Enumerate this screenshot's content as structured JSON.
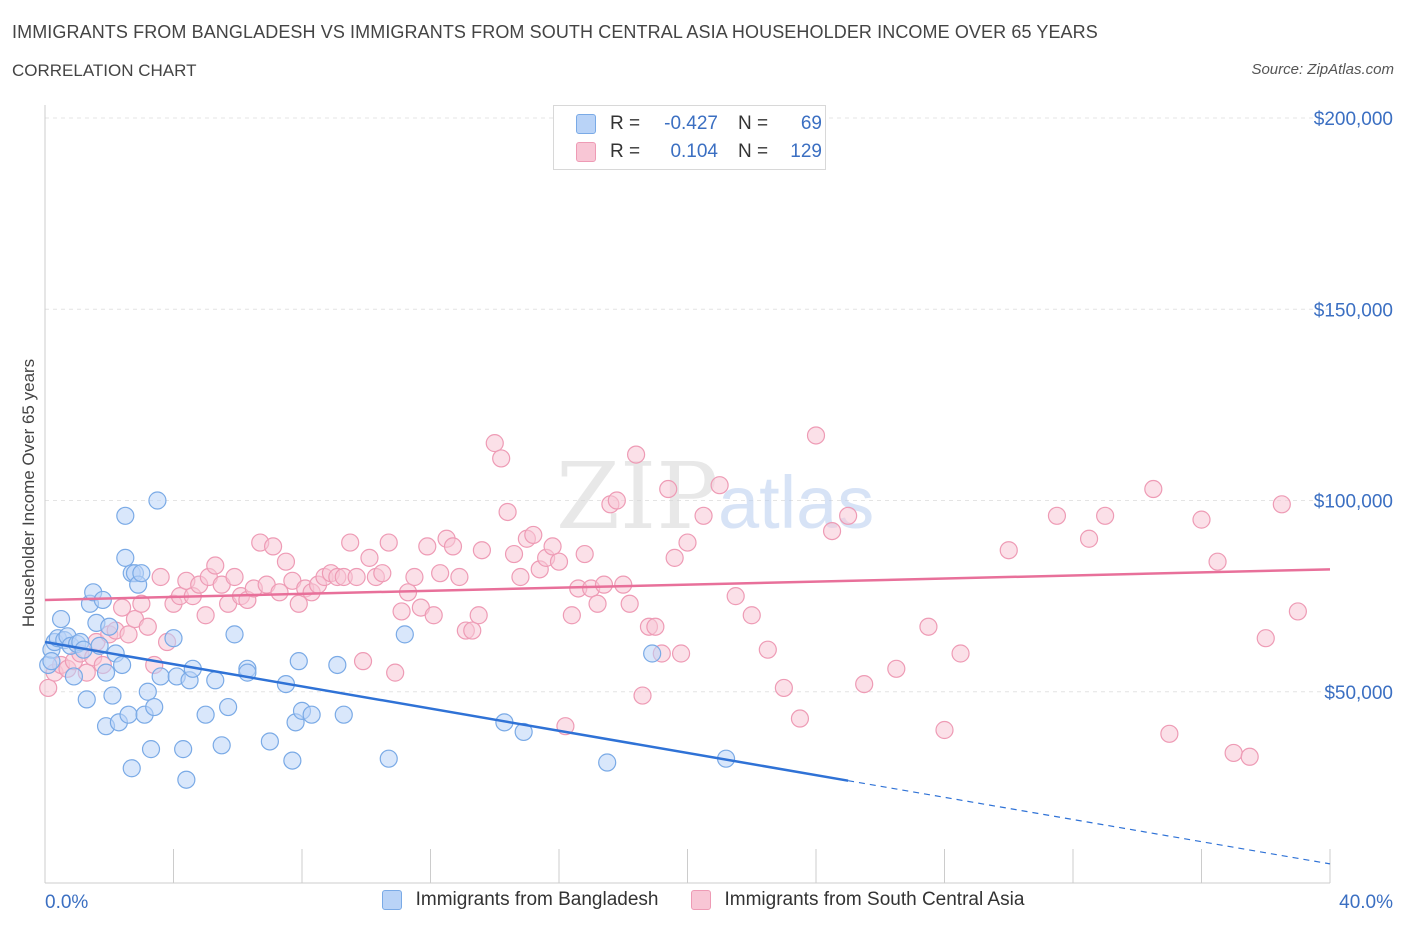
{
  "header": {
    "title": "IMMIGRANTS FROM BANGLADESH VS IMMIGRANTS FROM SOUTH CENTRAL ASIA HOUSEHOLDER INCOME OVER 65 YEARS",
    "subtitle": "CORRELATION CHART",
    "source": "Source: ZipAtlas.com"
  },
  "colors": {
    "blue_fill": "#b9d3f7",
    "blue_stroke": "#7aaae6",
    "blue_line": "#2f72d6",
    "pink_fill": "#f8c6d5",
    "pink_stroke": "#ee9bb5",
    "pink_line": "#e8709a",
    "axis_label": "#3b6fc2",
    "grid": "#e4e4e4"
  },
  "legend": {
    "rows": [
      {
        "r_label": "R =",
        "r_value": "-0.427",
        "n_label": "N =",
        "n_value": "69"
      },
      {
        "r_label": "R =",
        "r_value": "0.104",
        "n_label": "N =",
        "n_value": "129"
      }
    ]
  },
  "bottom_legend": {
    "series_a": "Immigrants from Bangladesh",
    "series_b": "Immigrants from South Central Asia"
  },
  "watermark": {
    "zip": "ZIP",
    "atlas": "atlas"
  },
  "chart_data": {
    "type": "scatter",
    "title": "IMMIGRANTS FROM BANGLADESH VS IMMIGRANTS FROM SOUTH CENTRAL ASIA HOUSEHOLDER INCOME OVER 65 YEARS",
    "xlabel": "",
    "ylabel": "Householder Income Over 65 years",
    "xlim": [
      0,
      40
    ],
    "ylim": [
      0,
      200000
    ],
    "x_tick_labels": [
      "0.0%",
      "40.0%"
    ],
    "y_ticks": [
      50000,
      100000,
      150000,
      200000
    ],
    "y_tick_labels": [
      "$50,000",
      "$100,000",
      "$150,000",
      "$200,000"
    ],
    "series": [
      {
        "name": "Immigrants from Bangladesh",
        "R": -0.427,
        "N": 69,
        "trend": {
          "x0": 0,
          "y0": 63000,
          "x1": 40,
          "y1": 5000,
          "solid_until_x": 25
        },
        "points": [
          [
            0.1,
            57000
          ],
          [
            0.2,
            61000
          ],
          [
            0.3,
            63000
          ],
          [
            0.4,
            64000
          ],
          [
            0.5,
            69000
          ],
          [
            0.6,
            63500
          ],
          [
            0.7,
            64500
          ],
          [
            0.8,
            62000
          ],
          [
            0.9,
            54000
          ],
          [
            1.0,
            62500
          ],
          [
            1.1,
            63000
          ],
          [
            1.2,
            61000
          ],
          [
            1.3,
            48000
          ],
          [
            1.4,
            73000
          ],
          [
            1.5,
            76000
          ],
          [
            1.6,
            68000
          ],
          [
            1.7,
            62000
          ],
          [
            1.8,
            74000
          ],
          [
            1.9,
            55000
          ],
          [
            1.9,
            41000
          ],
          [
            2.0,
            67000
          ],
          [
            2.1,
            49000
          ],
          [
            2.2,
            60000
          ],
          [
            2.3,
            42000
          ],
          [
            2.4,
            57000
          ],
          [
            2.5,
            96000
          ],
          [
            2.5,
            85000
          ],
          [
            2.6,
            44000
          ],
          [
            2.7,
            81000
          ],
          [
            2.7,
            30000
          ],
          [
            2.8,
            81000
          ],
          [
            2.9,
            78000
          ],
          [
            3.0,
            81000
          ],
          [
            3.1,
            44000
          ],
          [
            3.2,
            50000
          ],
          [
            3.3,
            35000
          ],
          [
            3.4,
            46000
          ],
          [
            3.5,
            100000
          ],
          [
            3.6,
            54000
          ],
          [
            4.0,
            64000
          ],
          [
            4.1,
            54000
          ],
          [
            4.3,
            35000
          ],
          [
            4.4,
            27000
          ],
          [
            4.5,
            53000
          ],
          [
            4.6,
            56000
          ],
          [
            5.0,
            44000
          ],
          [
            5.3,
            53000
          ],
          [
            5.5,
            36000
          ],
          [
            5.7,
            46000
          ],
          [
            5.9,
            65000
          ],
          [
            6.3,
            56000
          ],
          [
            6.3,
            55000
          ],
          [
            7.0,
            37000
          ],
          [
            7.5,
            52000
          ],
          [
            7.7,
            32000
          ],
          [
            7.8,
            42000
          ],
          [
            7.9,
            58000
          ],
          [
            8.0,
            45000
          ],
          [
            8.3,
            44000
          ],
          [
            9.1,
            57000
          ],
          [
            9.3,
            44000
          ],
          [
            10.7,
            32500
          ],
          [
            11.2,
            65000
          ],
          [
            14.3,
            42000
          ],
          [
            14.9,
            39500
          ],
          [
            17.5,
            31500
          ],
          [
            18.9,
            60000
          ],
          [
            21.2,
            32500
          ],
          [
            0.2,
            58000
          ]
        ]
      },
      {
        "name": "Immigrants from South Central Asia",
        "R": 0.104,
        "N": 129,
        "trend": {
          "x0": 0,
          "y0": 74000,
          "x1": 40,
          "y1": 82000
        },
        "points": [
          [
            0.1,
            51000
          ],
          [
            0.3,
            55000
          ],
          [
            0.5,
            57000
          ],
          [
            0.7,
            56000
          ],
          [
            0.9,
            58000
          ],
          [
            1.1,
            60000
          ],
          [
            1.3,
            55000
          ],
          [
            1.5,
            59000
          ],
          [
            1.6,
            63000
          ],
          [
            1.8,
            57000
          ],
          [
            2.0,
            65000
          ],
          [
            2.2,
            66000
          ],
          [
            2.4,
            72000
          ],
          [
            2.6,
            65000
          ],
          [
            2.8,
            69000
          ],
          [
            3.0,
            73000
          ],
          [
            3.2,
            67000
          ],
          [
            3.4,
            57000
          ],
          [
            3.6,
            80000
          ],
          [
            3.8,
            63000
          ],
          [
            4.0,
            73000
          ],
          [
            4.2,
            75000
          ],
          [
            4.4,
            79000
          ],
          [
            4.6,
            75000
          ],
          [
            4.8,
            78000
          ],
          [
            5.0,
            70000
          ],
          [
            5.1,
            80000
          ],
          [
            5.3,
            83000
          ],
          [
            5.5,
            78000
          ],
          [
            5.7,
            73000
          ],
          [
            5.9,
            80000
          ],
          [
            6.1,
            75000
          ],
          [
            6.3,
            74000
          ],
          [
            6.5,
            77000
          ],
          [
            6.7,
            89000
          ],
          [
            6.9,
            78000
          ],
          [
            7.1,
            88000
          ],
          [
            7.3,
            76000
          ],
          [
            7.5,
            84000
          ],
          [
            7.7,
            79000
          ],
          [
            7.9,
            73000
          ],
          [
            8.1,
            77000
          ],
          [
            8.3,
            76000
          ],
          [
            8.5,
            78000
          ],
          [
            8.7,
            80000
          ],
          [
            8.9,
            81000
          ],
          [
            9.1,
            80000
          ],
          [
            9.3,
            80000
          ],
          [
            9.5,
            89000
          ],
          [
            9.7,
            80000
          ],
          [
            9.9,
            58000
          ],
          [
            10.1,
            85000
          ],
          [
            10.3,
            80000
          ],
          [
            10.5,
            81000
          ],
          [
            10.7,
            89000
          ],
          [
            10.9,
            55000
          ],
          [
            11.1,
            71000
          ],
          [
            11.3,
            76000
          ],
          [
            11.5,
            80000
          ],
          [
            11.7,
            72000
          ],
          [
            11.9,
            88000
          ],
          [
            12.1,
            70000
          ],
          [
            12.3,
            81000
          ],
          [
            12.5,
            90000
          ],
          [
            12.7,
            88000
          ],
          [
            12.9,
            80000
          ],
          [
            13.1,
            66000
          ],
          [
            13.3,
            66000
          ],
          [
            13.5,
            70000
          ],
          [
            13.6,
            87000
          ],
          [
            14.0,
            115000
          ],
          [
            14.2,
            111000
          ],
          [
            14.4,
            97000
          ],
          [
            14.6,
            86000
          ],
          [
            14.8,
            80000
          ],
          [
            15.0,
            90000
          ],
          [
            15.2,
            91000
          ],
          [
            15.4,
            82000
          ],
          [
            15.6,
            85000
          ],
          [
            15.8,
            88000
          ],
          [
            16.0,
            84000
          ],
          [
            16.2,
            41000
          ],
          [
            16.4,
            70000
          ],
          [
            16.6,
            77000
          ],
          [
            16.8,
            86000
          ],
          [
            17.0,
            77000
          ],
          [
            17.2,
            73000
          ],
          [
            17.4,
            78000
          ],
          [
            17.6,
            99000
          ],
          [
            17.8,
            100000
          ],
          [
            18.0,
            78000
          ],
          [
            18.2,
            73000
          ],
          [
            18.4,
            112000
          ],
          [
            18.6,
            49000
          ],
          [
            18.8,
            67000
          ],
          [
            19.0,
            67000
          ],
          [
            19.2,
            60000
          ],
          [
            19.4,
            103000
          ],
          [
            19.6,
            85000
          ],
          [
            19.8,
            60000
          ],
          [
            20.0,
            89000
          ],
          [
            20.5,
            96000
          ],
          [
            21.0,
            104000
          ],
          [
            21.5,
            75000
          ],
          [
            22.0,
            70000
          ],
          [
            22.5,
            61000
          ],
          [
            23.0,
            51000
          ],
          [
            23.5,
            43000
          ],
          [
            24.0,
            117000
          ],
          [
            24.5,
            92000
          ],
          [
            25.0,
            96000
          ],
          [
            25.5,
            52000
          ],
          [
            26.5,
            56000
          ],
          [
            27.5,
            67000
          ],
          [
            28.0,
            40000
          ],
          [
            28.5,
            60000
          ],
          [
            30.0,
            87000
          ],
          [
            31.5,
            96000
          ],
          [
            32.5,
            90000
          ],
          [
            33.0,
            96000
          ],
          [
            34.5,
            103000
          ],
          [
            35.0,
            39000
          ],
          [
            36.0,
            95000
          ],
          [
            36.5,
            84000
          ],
          [
            37.0,
            34000
          ],
          [
            37.5,
            33000
          ],
          [
            38.0,
            64000
          ],
          [
            38.5,
            99000
          ],
          [
            39.0,
            71000
          ]
        ]
      }
    ]
  }
}
